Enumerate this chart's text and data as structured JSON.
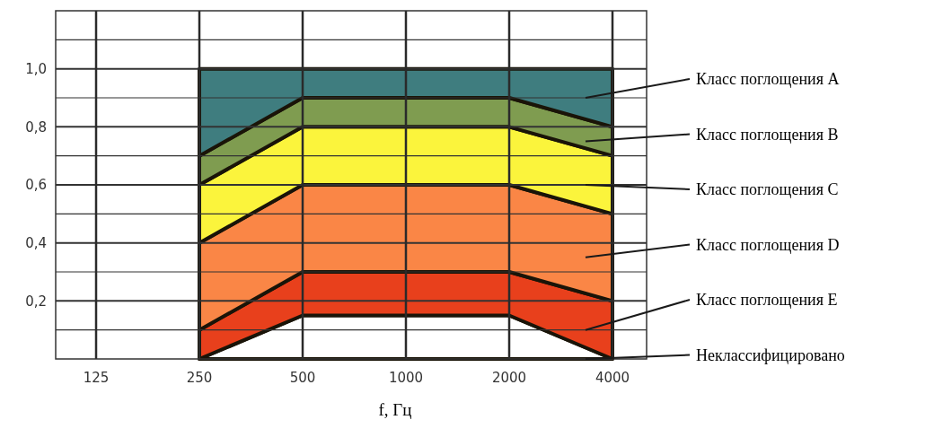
{
  "chart_data": {
    "type": "area",
    "stacked": true,
    "xlabel": "f, Гц",
    "categories": [
      "125",
      "250",
      "500",
      "1000",
      "2000",
      "4000"
    ],
    "series": [
      {
        "name": "Неклассифицировано",
        "color": "#ffffff",
        "values": [
          null,
          0,
          0.15,
          0.15,
          0.15,
          0
        ]
      },
      {
        "name": "Класс поглощения E",
        "color": "#e8401c",
        "values": [
          null,
          0.1,
          0.15,
          0.15,
          0.15,
          0.2
        ]
      },
      {
        "name": "Класс поглощения D",
        "color": "#fa8646",
        "values": [
          null,
          0.3,
          0.3,
          0.3,
          0.3,
          0.3
        ]
      },
      {
        "name": "Класс поглощения C",
        "color": "#fbf43c",
        "values": [
          null,
          0.2,
          0.2,
          0.2,
          0.2,
          0.2
        ]
      },
      {
        "name": "Класс поглощения B",
        "color": "#7f9c50",
        "values": [
          null,
          0.1,
          0.1,
          0.1,
          0.1,
          0.1
        ]
      },
      {
        "name": "Класс поглощения A",
        "color": "#3f7d7f",
        "values": [
          null,
          0.3,
          0.1,
          0.1,
          0.1,
          0.2
        ]
      }
    ],
    "ylim": [
      0,
      1.2
    ],
    "yticks": [
      {
        "value": 0.1,
        "label": null
      },
      {
        "value": 0.2,
        "label": "0,2"
      },
      {
        "value": 0.3,
        "label": null
      },
      {
        "value": 0.4,
        "label": "0,4"
      },
      {
        "value": 0.5,
        "label": null
      },
      {
        "value": 0.6,
        "label": "0,6"
      },
      {
        "value": 0.7,
        "label": null
      },
      {
        "value": 0.8,
        "label": "0,8"
      },
      {
        "value": 0.9,
        "label": null
      },
      {
        "value": 1.0,
        "label": "1,0"
      },
      {
        "value": 1.1,
        "label": null
      }
    ],
    "grid": true,
    "legend": "right"
  }
}
